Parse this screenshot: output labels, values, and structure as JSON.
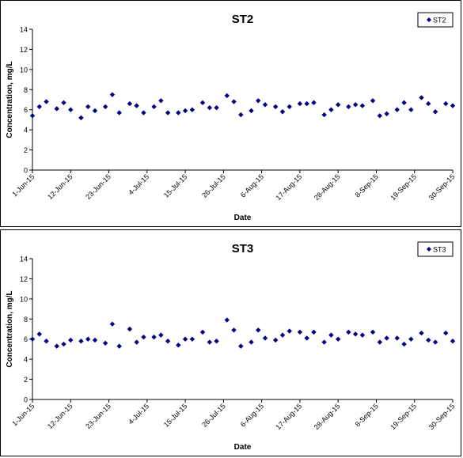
{
  "chart_data": [
    {
      "type": "scatter",
      "title": "ST2",
      "xlabel": "Date",
      "ylabel": "Concentration, mg/L",
      "ylim": [
        0,
        14
      ],
      "yticks": [
        0,
        2,
        4,
        6,
        8,
        10,
        12,
        14
      ],
      "xlim": [
        "2015-06-01",
        "2015-09-30"
      ],
      "xtick_labels": [
        "1-Jun-15",
        "12-Jun-15",
        "23-Jun-15",
        "4-Jul-15",
        "15-Jul-15",
        "26-Jul-15",
        "6-Aug-15",
        "17-Aug-15",
        "28-Aug-15",
        "8-Sep-15",
        "19-Sep-15",
        "30-Sep-15"
      ],
      "grid": false,
      "legend_position": "top-right",
      "marker_color": "#000080",
      "series": [
        {
          "name": "ST2",
          "x": [
            "2015-06-01",
            "2015-06-03",
            "2015-06-05",
            "2015-06-08",
            "2015-06-10",
            "2015-06-12",
            "2015-06-15",
            "2015-06-17",
            "2015-06-19",
            "2015-06-22",
            "2015-06-24",
            "2015-06-26",
            "2015-06-29",
            "2015-07-01",
            "2015-07-03",
            "2015-07-06",
            "2015-07-08",
            "2015-07-10",
            "2015-07-13",
            "2015-07-15",
            "2015-07-17",
            "2015-07-20",
            "2015-07-22",
            "2015-07-24",
            "2015-07-27",
            "2015-07-29",
            "2015-07-31",
            "2015-08-03",
            "2015-08-05",
            "2015-08-07",
            "2015-08-10",
            "2015-08-12",
            "2015-08-14",
            "2015-08-17",
            "2015-08-19",
            "2015-08-21",
            "2015-08-24",
            "2015-08-26",
            "2015-08-28",
            "2015-08-31",
            "2015-09-02",
            "2015-09-04",
            "2015-09-07",
            "2015-09-09",
            "2015-09-11",
            "2015-09-14",
            "2015-09-16",
            "2015-09-18",
            "2015-09-21",
            "2015-09-23",
            "2015-09-25",
            "2015-09-28",
            "2015-09-30"
          ],
          "y": [
            5.4,
            6.3,
            6.8,
            6.1,
            6.7,
            6.0,
            5.2,
            6.3,
            5.9,
            6.3,
            7.5,
            5.7,
            6.6,
            6.4,
            5.7,
            6.3,
            6.9,
            5.7,
            5.7,
            5.9,
            6.0,
            6.7,
            6.2,
            6.2,
            7.4,
            6.8,
            5.5,
            5.9,
            6.9,
            6.5,
            6.3,
            5.8,
            6.3,
            6.6,
            6.6,
            6.7,
            5.5,
            6.0,
            6.5,
            6.3,
            6.5,
            6.4,
            6.9,
            5.4,
            5.6,
            6.0,
            6.7,
            6.0,
            7.2,
            6.6,
            5.8,
            6.6,
            6.4
          ]
        }
      ]
    },
    {
      "type": "scatter",
      "title": "ST3",
      "xlabel": "Date",
      "ylabel": "Concentration, mg/L",
      "ylim": [
        0,
        14
      ],
      "yticks": [
        0,
        2,
        4,
        6,
        8,
        10,
        12,
        14
      ],
      "xlim": [
        "2015-06-01",
        "2015-09-30"
      ],
      "xtick_labels": [
        "1-Jun-15",
        "12-Jun-15",
        "23-Jun-15",
        "4-Jul-15",
        "15-Jul-15",
        "26-Jul-15",
        "6-Aug-15",
        "17-Aug-15",
        "28-Aug-15",
        "8-Sep-15",
        "19-Sep-15",
        "30-Sep-15"
      ],
      "grid": false,
      "legend_position": "top-right",
      "marker_color": "#000080",
      "series": [
        {
          "name": "ST3",
          "x": [
            "2015-06-01",
            "2015-06-03",
            "2015-06-05",
            "2015-06-08",
            "2015-06-10",
            "2015-06-12",
            "2015-06-15",
            "2015-06-17",
            "2015-06-19",
            "2015-06-22",
            "2015-06-24",
            "2015-06-26",
            "2015-06-29",
            "2015-07-01",
            "2015-07-03",
            "2015-07-06",
            "2015-07-08",
            "2015-07-10",
            "2015-07-13",
            "2015-07-15",
            "2015-07-17",
            "2015-07-20",
            "2015-07-22",
            "2015-07-24",
            "2015-07-27",
            "2015-07-29",
            "2015-07-31",
            "2015-08-03",
            "2015-08-05",
            "2015-08-07",
            "2015-08-10",
            "2015-08-12",
            "2015-08-14",
            "2015-08-17",
            "2015-08-19",
            "2015-08-21",
            "2015-08-24",
            "2015-08-26",
            "2015-08-28",
            "2015-08-31",
            "2015-09-02",
            "2015-09-04",
            "2015-09-07",
            "2015-09-09",
            "2015-09-11",
            "2015-09-14",
            "2015-09-16",
            "2015-09-18",
            "2015-09-21",
            "2015-09-23",
            "2015-09-25",
            "2015-09-28",
            "2015-09-30"
          ],
          "y": [
            6.0,
            6.5,
            5.8,
            5.3,
            5.5,
            5.9,
            5.8,
            6.0,
            5.9,
            5.6,
            7.5,
            5.3,
            7.0,
            5.7,
            6.2,
            6.2,
            6.4,
            5.8,
            5.4,
            6.0,
            6.0,
            6.7,
            5.7,
            5.8,
            7.9,
            6.9,
            5.3,
            5.7,
            6.9,
            6.1,
            5.9,
            6.4,
            6.8,
            6.7,
            6.1,
            6.7,
            5.7,
            6.4,
            6.0,
            6.7,
            6.5,
            6.4,
            6.7,
            5.7,
            6.1,
            6.1,
            5.5,
            6.0,
            6.6,
            5.9,
            5.7,
            6.6,
            5.8
          ]
        }
      ]
    }
  ]
}
